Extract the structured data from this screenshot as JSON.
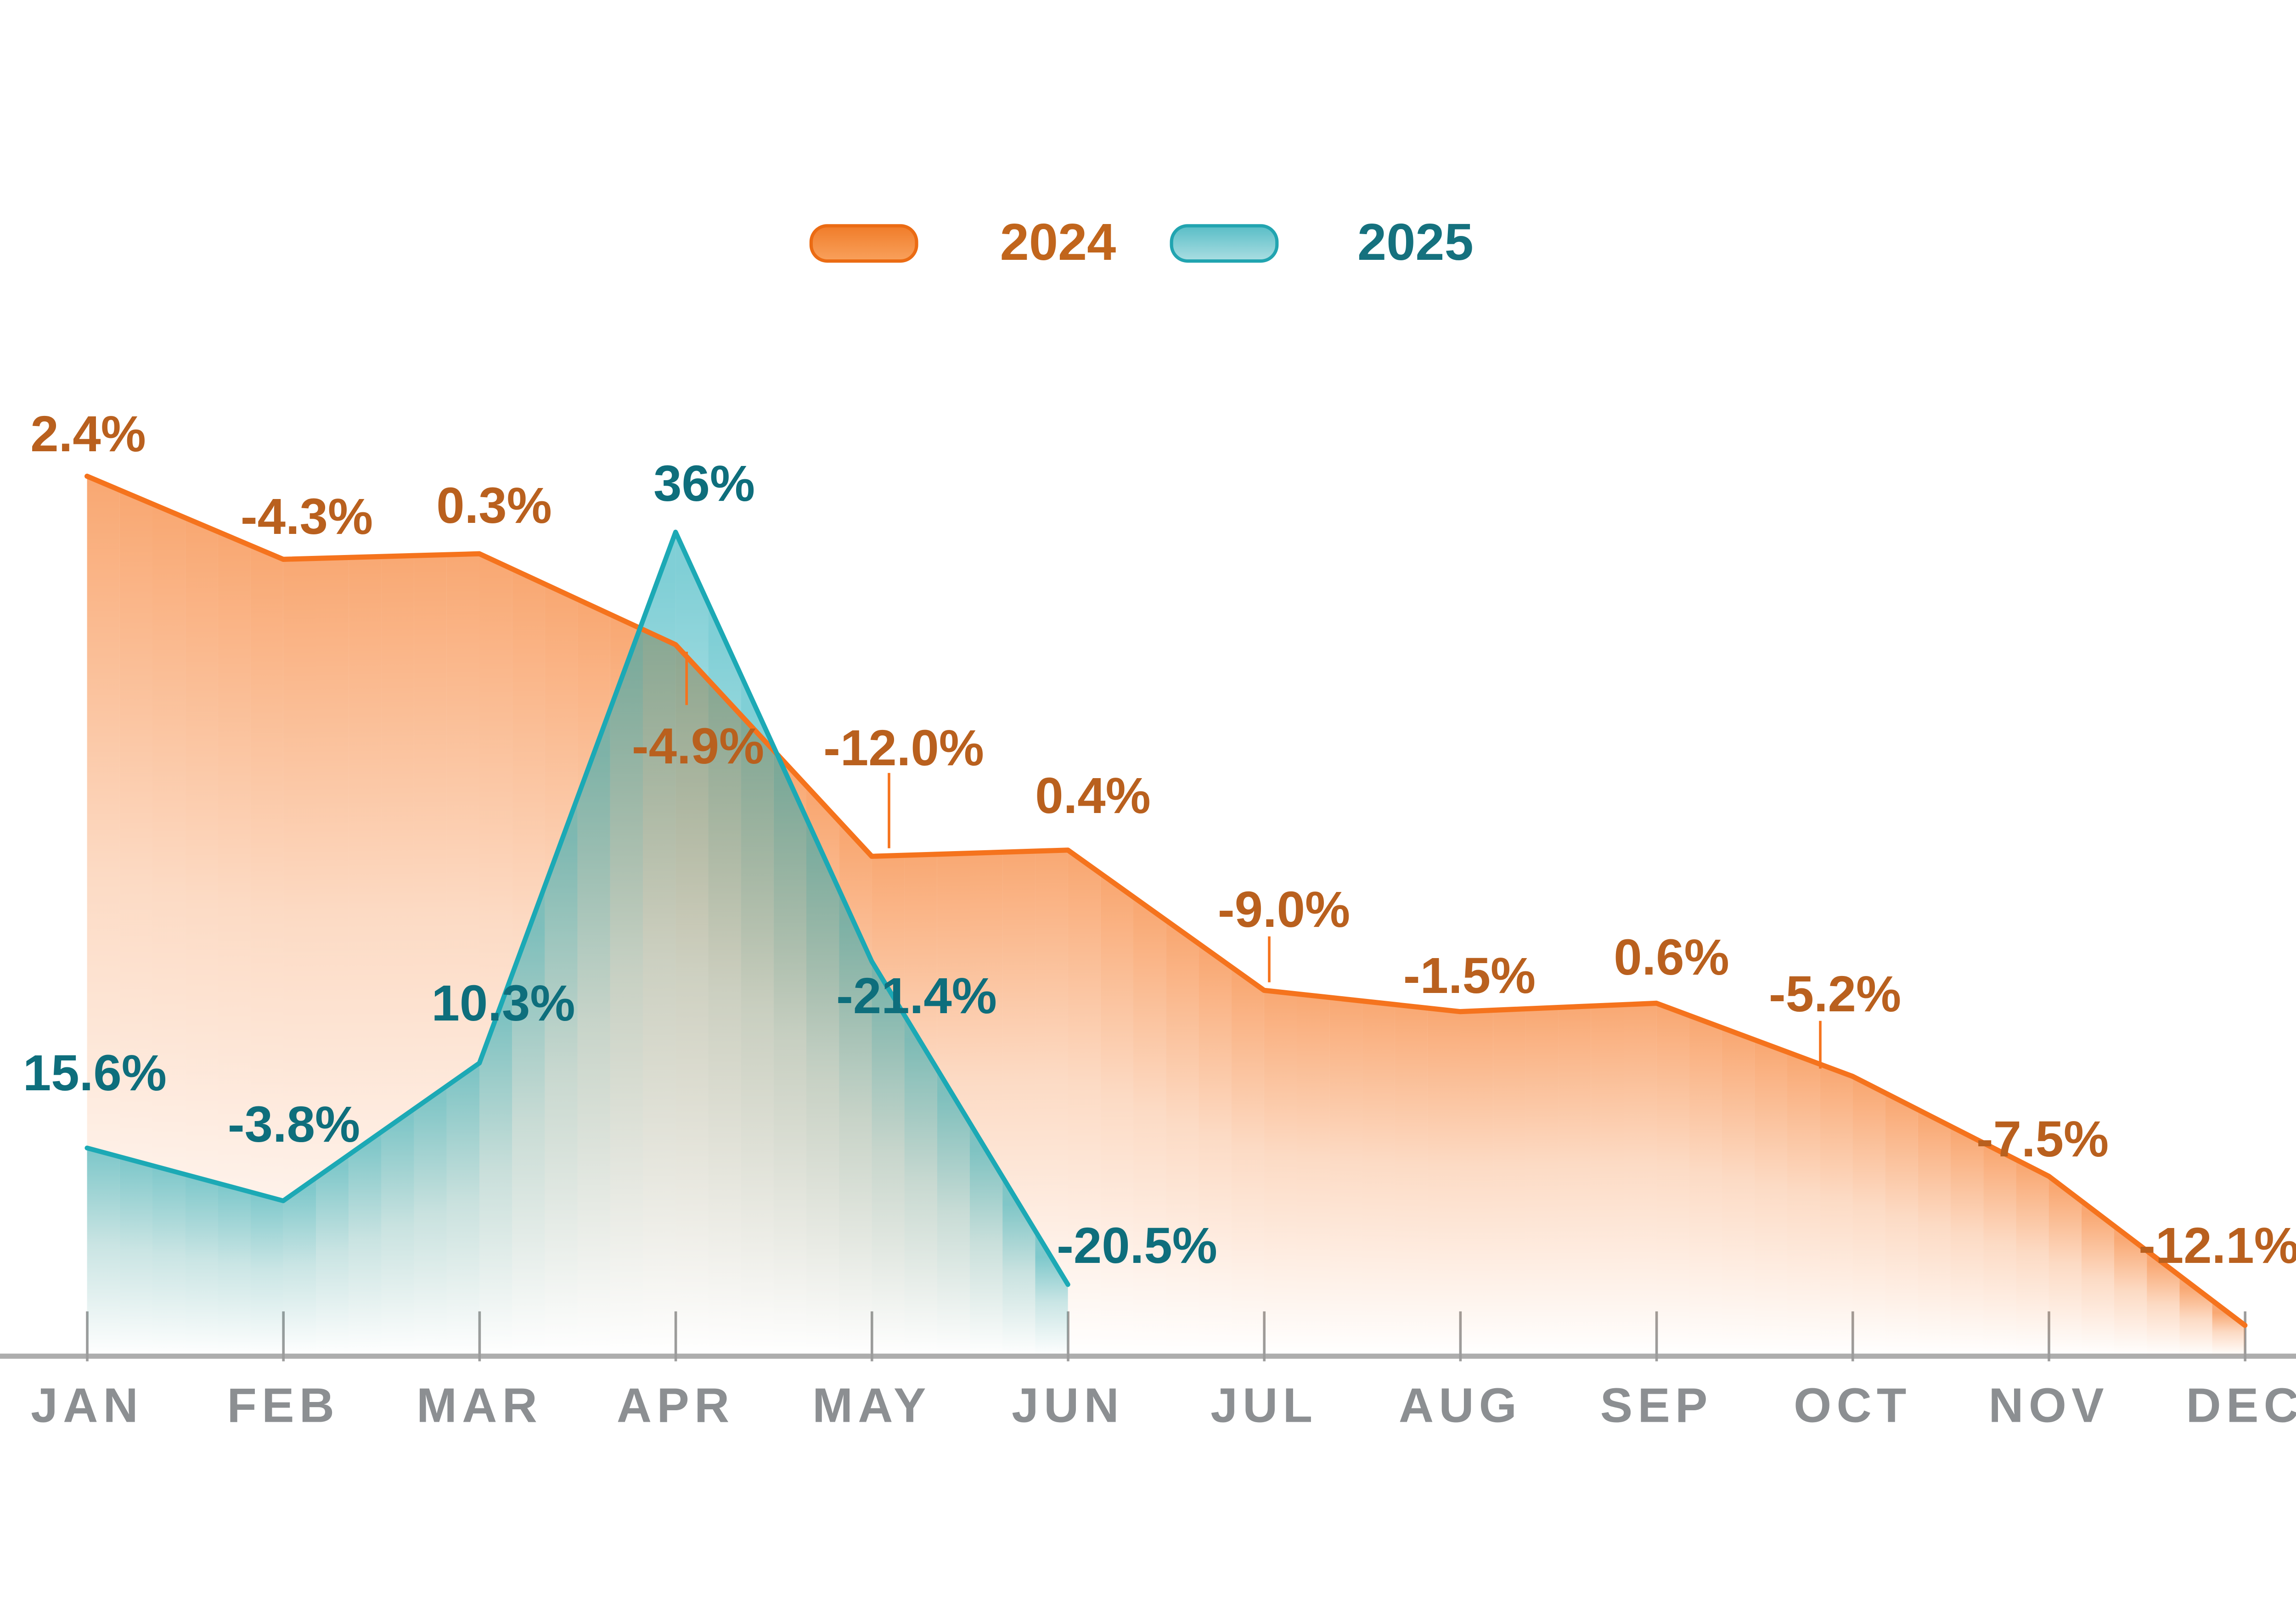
{
  "legend": {
    "position": "top-center",
    "items": [
      {
        "label": "2024",
        "swatch_color_top": "#F07C29",
        "swatch_color_bottom": "#F9A15C",
        "swatch_border": "#EB6B13",
        "text_color": "#C1651C"
      },
      {
        "label": "2025",
        "swatch_color_top": "#58BDC6",
        "swatch_color_bottom": "#ABDEE2",
        "swatch_border": "#21A4B0",
        "text_color": "#15717E"
      }
    ]
  },
  "chart_data": {
    "type": "area",
    "title": "",
    "xlabel": "",
    "ylabel": "",
    "value_format": "percent",
    "grid": false,
    "legend_position": "top",
    "background": "#FFFFFF",
    "categories": [
      "JAN",
      "FEB",
      "MAR",
      "APR",
      "MAY",
      "JUN",
      "JUL",
      "AUG",
      "SEP",
      "OCT",
      "NOV",
      "DEC"
    ],
    "series": [
      {
        "name": "2024",
        "color": "#F5731D",
        "label_color": "#B9601E",
        "values": [
          2.4,
          -4.3,
          0.3,
          -4.9,
          -12.0,
          0.4,
          -9.0,
          -1.5,
          0.6,
          -5.2,
          -7.5,
          -12.1
        ],
        "labels": [
          "2.4%",
          "-4.3%",
          "0.3%",
          "-4.9%",
          "-12.0%",
          "0.4%",
          "-9.0%",
          "-1.5%",
          "0.6%",
          "-5.2%",
          "-7.5%",
          "-12.1%"
        ]
      },
      {
        "name": "2025",
        "color": "#1CA9B5",
        "label_color": "#0E6E7C",
        "values": [
          15.6,
          -3.8,
          10.3,
          36,
          -21.4,
          -20.5
        ],
        "labels": [
          "15.6%",
          "-3.8%",
          "10.3%",
          "36%",
          "-21.4%",
          "-20.5%"
        ]
      }
    ],
    "x_axis": {
      "line_color": "#ADADAD",
      "tick_color": "#9C9C9C",
      "label_color": "#8C8F92"
    }
  }
}
